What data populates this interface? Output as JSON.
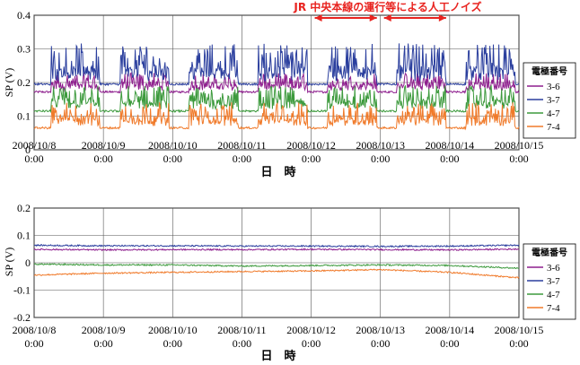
{
  "chart_data": [
    {
      "type": "line",
      "ylabel": "SP (V)",
      "xlabel": "日　時",
      "ylim": [
        0,
        0.4
      ],
      "yticks": [
        "0",
        "0.1",
        "0.2",
        "0.3",
        "0.4"
      ],
      "x_ticks": [
        {
          "date": "2008/10/8",
          "time": "0:00"
        },
        {
          "date": "2008/10/9",
          "time": "0:00"
        },
        {
          "date": "2008/10/10",
          "time": "0:00"
        },
        {
          "date": "2008/10/11",
          "time": "0:00"
        },
        {
          "date": "2008/10/12",
          "time": "0:00"
        },
        {
          "date": "2008/10/13",
          "time": "0:00"
        },
        {
          "date": "2008/10/14",
          "time": "0:00"
        },
        {
          "date": "2008/10/15",
          "time": "0:00"
        }
      ],
      "annotation": "JR 中央本線の運行等による人工ノイズ",
      "annotation_spans": [
        [
          "2008/10/12",
          "2008/10/13"
        ],
        [
          "2008/10/13",
          "2008/10/14"
        ]
      ],
      "legend_title": "電極番号",
      "legend_position": "right",
      "series": [
        {
          "name": "3-6",
          "color": "#8e1f8e",
          "base": 0.172,
          "noise_peak": 0.235
        },
        {
          "name": "3-7",
          "color": "#2b3f9e",
          "base": 0.195,
          "noise_peak": 0.33
        },
        {
          "name": "4-7",
          "color": "#3d9a3d",
          "base": 0.115,
          "noise_peak": 0.2
        },
        {
          "name": "7-4",
          "color": "#f07a2a",
          "base": 0.065,
          "noise_peak": 0.15
        }
      ]
    },
    {
      "type": "line",
      "ylabel": "SP (V)",
      "xlabel": "日　時",
      "ylim": [
        -0.2,
        0.2
      ],
      "yticks": [
        "0.2",
        "0.1",
        "0",
        "-0.1",
        "-0.2"
      ],
      "x_ticks": [
        {
          "date": "2008/10/8",
          "time": "0:00"
        },
        {
          "date": "2008/10/9",
          "time": "0:00"
        },
        {
          "date": "2008/10/10",
          "time": "0:00"
        },
        {
          "date": "2008/10/11",
          "time": "0:00"
        },
        {
          "date": "2008/10/12",
          "time": "0:00"
        },
        {
          "date": "2008/10/13",
          "time": "0:00"
        },
        {
          "date": "2008/10/14",
          "time": "0:00"
        },
        {
          "date": "2008/10/15",
          "time": "0:00"
        }
      ],
      "legend_title": "電極番号",
      "legend_position": "right",
      "series": [
        {
          "name": "3-6",
          "color": "#8e1f8e",
          "values": [
            0.049,
            0.047,
            0.048,
            0.048,
            0.049,
            0.048,
            0.047,
            0.05
          ]
        },
        {
          "name": "3-7",
          "color": "#2b3f9e",
          "values": [
            0.064,
            0.062,
            0.062,
            0.061,
            0.061,
            0.06,
            0.061,
            0.064
          ]
        },
        {
          "name": "4-7",
          "color": "#3d9a3d",
          "values": [
            -0.005,
            -0.008,
            -0.008,
            -0.012,
            -0.01,
            -0.008,
            -0.01,
            -0.02
          ]
        },
        {
          "name": "7-4",
          "color": "#f07a2a",
          "values": [
            -0.045,
            -0.038,
            -0.035,
            -0.032,
            -0.03,
            -0.025,
            -0.035,
            -0.055
          ]
        }
      ]
    }
  ]
}
